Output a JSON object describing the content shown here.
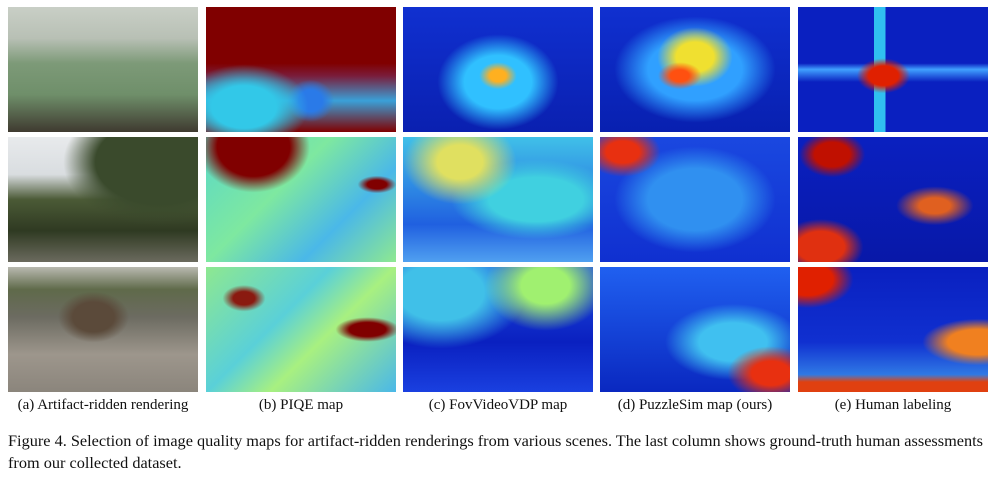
{
  "figure": {
    "columns": [
      {
        "label": "(a) Artifact-ridden rendering"
      },
      {
        "label": "(b) PIQE map"
      },
      {
        "label": "(c) FovVideoVDP map"
      },
      {
        "label": "(d) PuzzleSim map (ours)"
      },
      {
        "label": "(e) Human labeling"
      }
    ],
    "colormap": [
      "#00008f",
      "#0050ff",
      "#00dfff",
      "#80ff80",
      "#ffdf00",
      "#ff5000",
      "#800000"
    ],
    "caption": "Figure 4. Selection of image quality maps for artifact-ridden renderings from various scenes. The last column shows ground-truth human assessments from our collected dataset."
  }
}
